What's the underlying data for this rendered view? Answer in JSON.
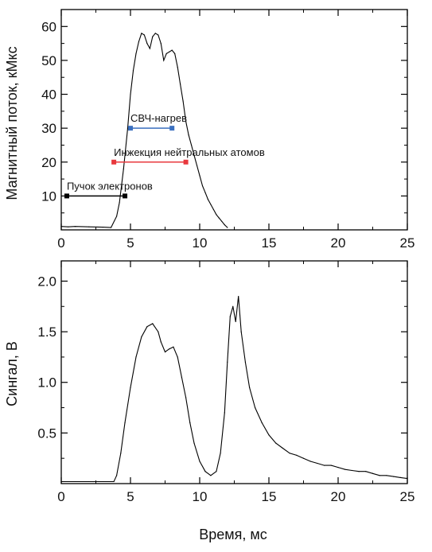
{
  "chart_data": [
    {
      "type": "line",
      "panel": "top",
      "title": "",
      "xlabel": "",
      "ylabel": "Магнитный поток, кМкс",
      "xlim": [
        0,
        25
      ],
      "ylim": [
        0,
        65
      ],
      "xticks": [
        0,
        5,
        10,
        15,
        20,
        25
      ],
      "yticks": [
        10,
        20,
        30,
        40,
        50,
        60
      ],
      "grid": false,
      "series": [
        {
          "color": "#000000",
          "x": [
            0.0,
            0.5,
            1.0,
            2.0,
            3.0,
            3.6,
            4.0,
            4.2,
            4.5,
            4.8,
            5.0,
            5.2,
            5.4,
            5.6,
            5.8,
            6.0,
            6.2,
            6.4,
            6.6,
            6.8,
            7.0,
            7.2,
            7.4,
            7.6,
            7.8,
            8.0,
            8.2,
            8.4,
            8.6,
            8.8,
            9.0,
            9.2,
            9.4,
            9.6,
            9.8,
            10.0,
            10.2,
            10.4,
            10.6,
            10.8,
            11.0,
            11.2,
            11.4,
            11.6,
            11.8,
            12.0
          ],
          "values": [
            1.0,
            0.9,
            1.0,
            0.9,
            0.8,
            0.7,
            4.0,
            8.0,
            18.0,
            30.0,
            40.0,
            47.0,
            52.0,
            55.5,
            58.0,
            57.5,
            55.0,
            53.5,
            57.0,
            58.0,
            57.5,
            55.0,
            50.0,
            52.0,
            52.5,
            53.0,
            52.0,
            48.0,
            43.0,
            38.0,
            32.0,
            28.0,
            25.0,
            22.0,
            19.0,
            16.0,
            13.0,
            11.0,
            9.0,
            7.5,
            6.0,
            4.5,
            3.5,
            2.5,
            1.5,
            0.7
          ]
        }
      ],
      "intervals": [
        {
          "label": "СВЧ-нагрев",
          "start": 5.0,
          "end": 8.0,
          "y": 30,
          "color": "#3a6fbf"
        },
        {
          "label": "Инжекция нейтральных атомов",
          "start": 3.8,
          "end": 9.0,
          "y": 20,
          "color": "#e8383d"
        },
        {
          "label": "Пучок электронов",
          "start": 0.4,
          "end": 4.6,
          "y": 10,
          "color": "#000000"
        }
      ]
    },
    {
      "type": "line",
      "panel": "bottom",
      "title": "",
      "xlabel": "Время, мс",
      "ylabel": "Сингал, В",
      "xlim": [
        0,
        25
      ],
      "ylim": [
        0,
        2.2
      ],
      "xticks": [
        0,
        5,
        10,
        15,
        20,
        25
      ],
      "yticks": [
        0.5,
        1.0,
        1.5,
        2.0
      ],
      "ytick_labels": [
        "0.5",
        "1.0",
        "1.5",
        "2.0"
      ],
      "grid": false,
      "series": [
        {
          "color": "#000000",
          "x": [
            0.0,
            1.0,
            2.0,
            3.0,
            3.8,
            4.0,
            4.3,
            4.6,
            5.0,
            5.4,
            5.8,
            6.2,
            6.6,
            7.0,
            7.2,
            7.5,
            7.8,
            8.1,
            8.4,
            8.7,
            9.0,
            9.3,
            9.6,
            10.0,
            10.4,
            10.8,
            11.2,
            11.5,
            11.8,
            12.0,
            12.2,
            12.4,
            12.6,
            12.8,
            13.0,
            13.3,
            13.6,
            14.0,
            14.5,
            15.0,
            15.5,
            16.0,
            16.5,
            17.0,
            17.5,
            18.0,
            18.5,
            19.0,
            19.5,
            20.0,
            20.5,
            21.0,
            21.5,
            22.0,
            22.5,
            23.0,
            23.5,
            24.0,
            24.5,
            25.0
          ],
          "values": [
            0.02,
            0.02,
            0.02,
            0.02,
            0.02,
            0.08,
            0.3,
            0.6,
            0.95,
            1.25,
            1.45,
            1.55,
            1.58,
            1.5,
            1.4,
            1.3,
            1.33,
            1.35,
            1.25,
            1.05,
            0.85,
            0.6,
            0.4,
            0.22,
            0.12,
            0.08,
            0.12,
            0.3,
            0.7,
            1.2,
            1.65,
            1.75,
            1.6,
            1.85,
            1.5,
            1.2,
            0.95,
            0.75,
            0.6,
            0.48,
            0.4,
            0.35,
            0.3,
            0.28,
            0.25,
            0.22,
            0.2,
            0.18,
            0.18,
            0.16,
            0.14,
            0.13,
            0.12,
            0.12,
            0.1,
            0.08,
            0.08,
            0.07,
            0.06,
            0.05
          ]
        }
      ]
    }
  ]
}
